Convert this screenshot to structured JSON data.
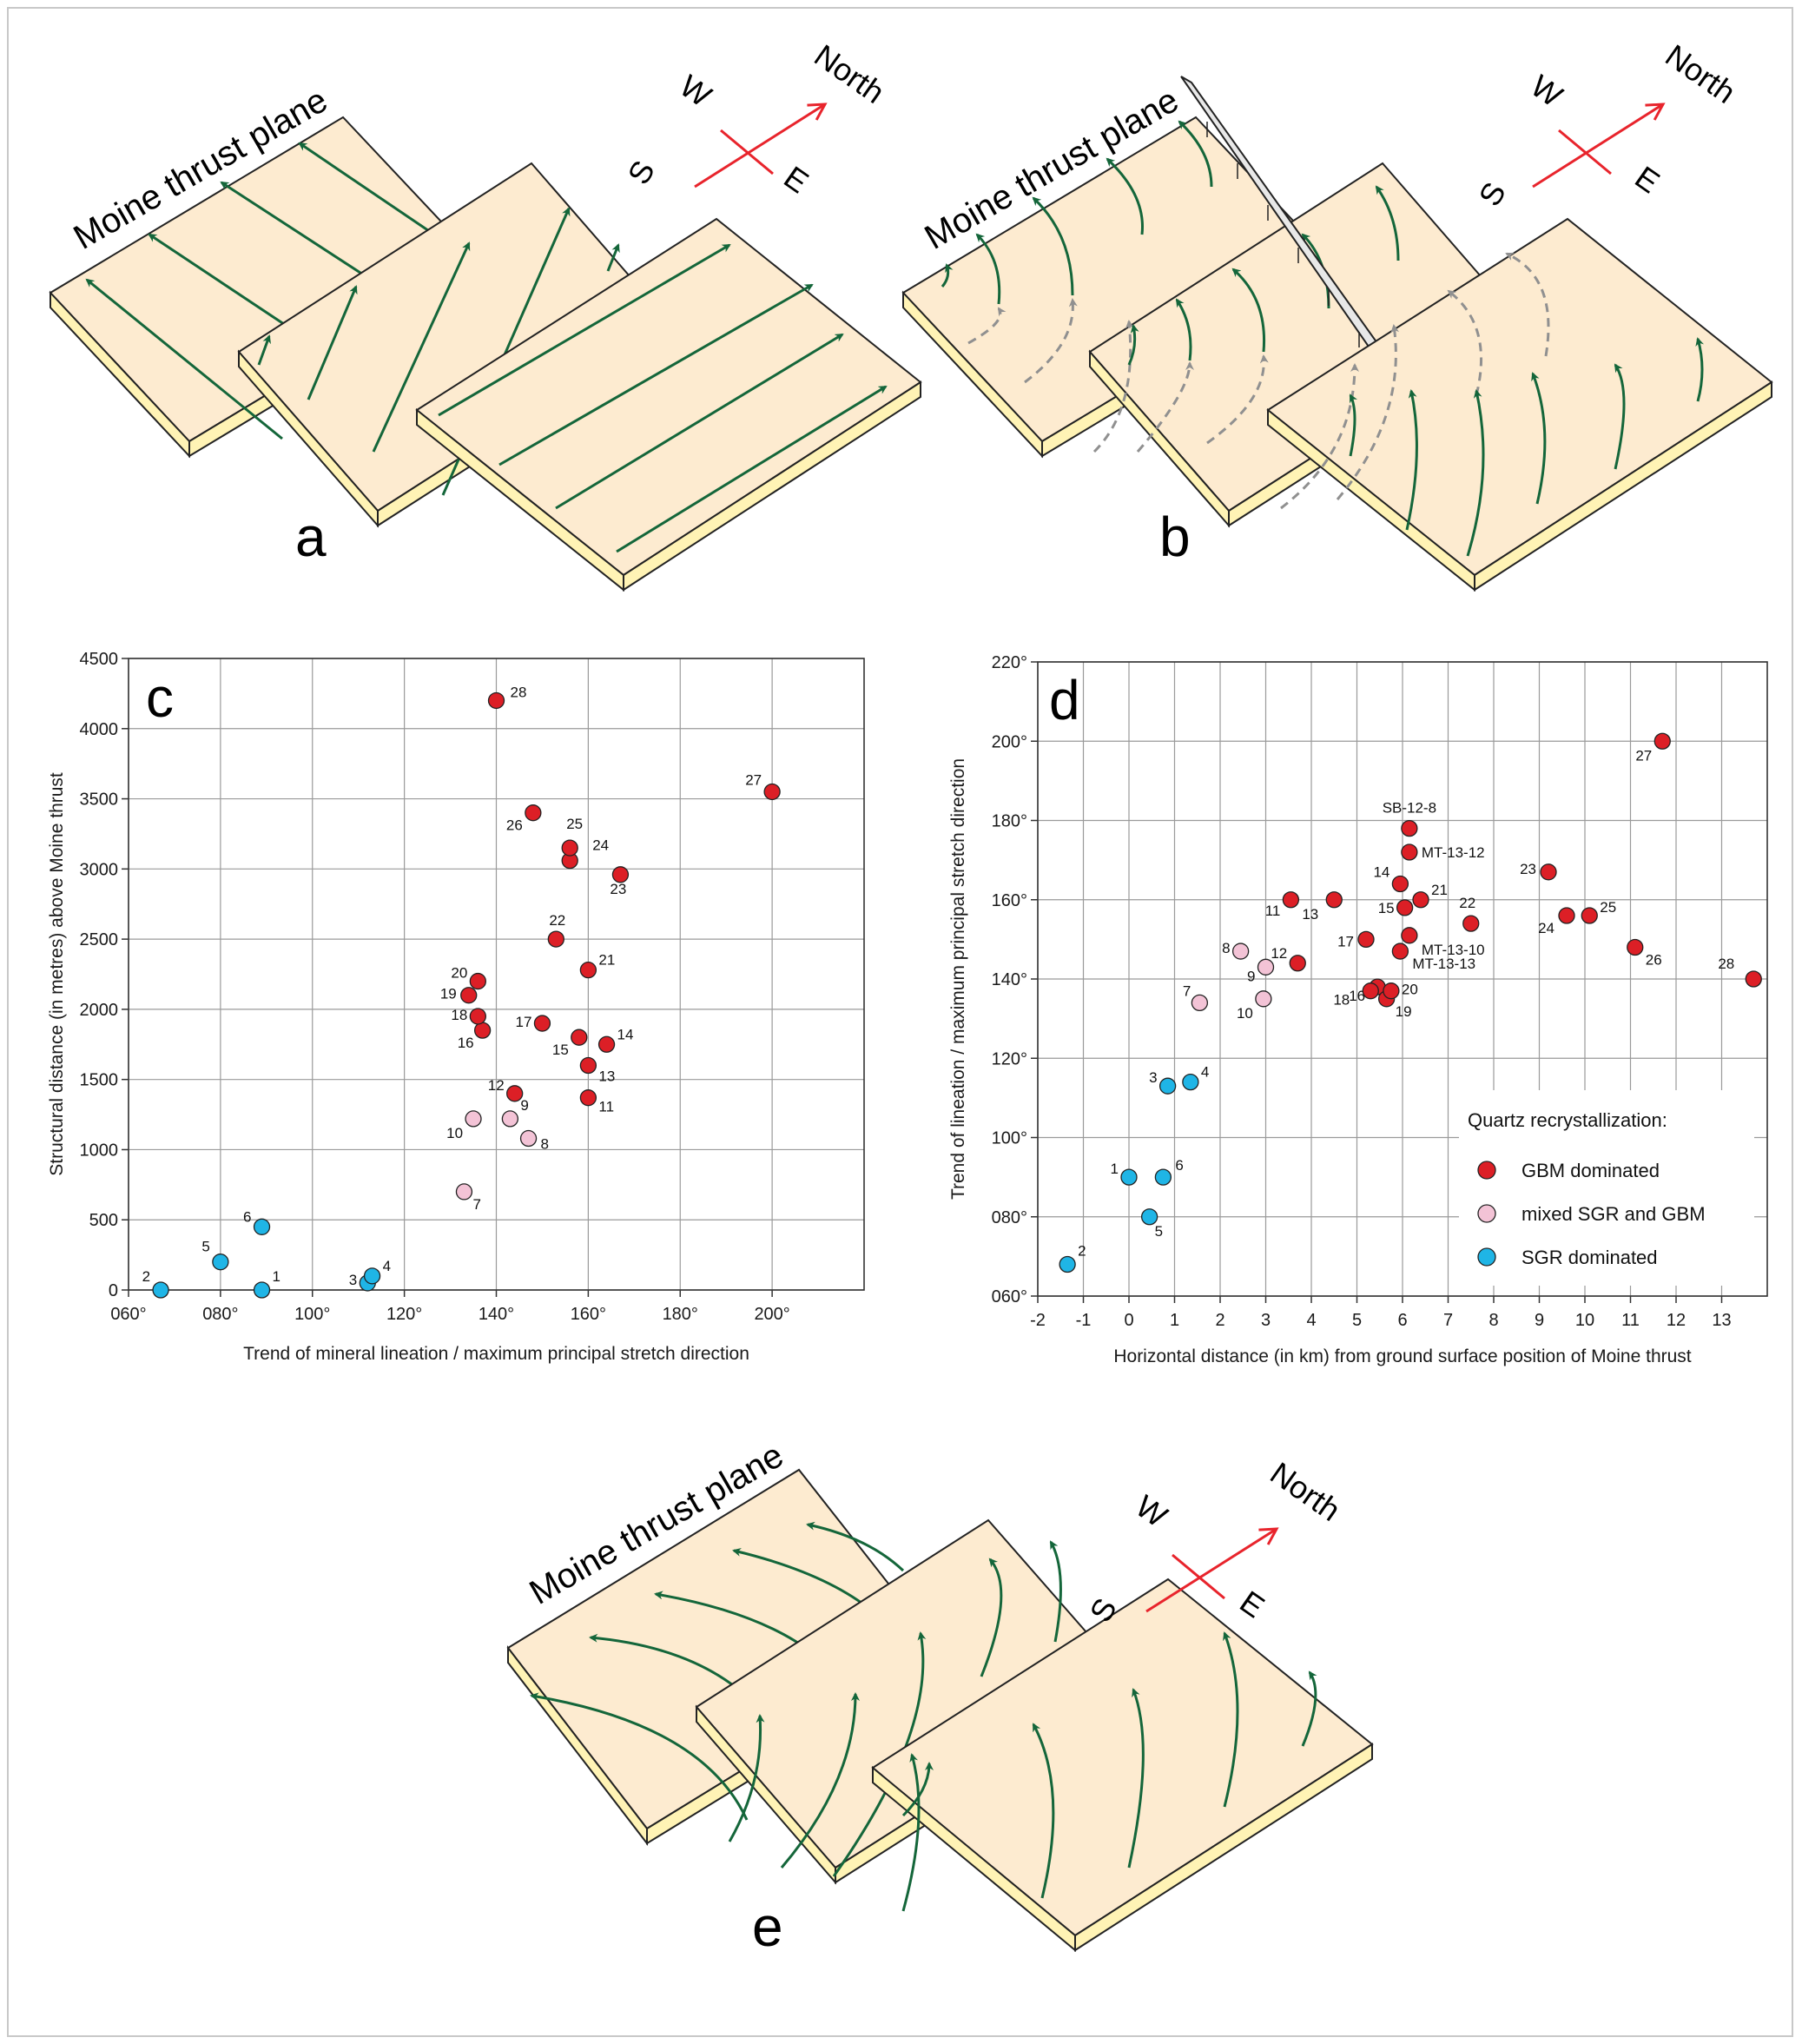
{
  "colors": {
    "plate_top": "#fdebd0",
    "plate_side": "#fff3b5",
    "arrow": "#14663a",
    "dashed_arrow": "#909090",
    "compass": "#e8242c",
    "gbm": "#dc1f26",
    "mixed": "#f3c3d6",
    "sgr": "#1fb5e6"
  },
  "diagrams": {
    "a": {
      "label": "a",
      "plane_label": "Moine thrust plane"
    },
    "b": {
      "label": "b",
      "plane_label": "Moine thrust plane"
    },
    "e": {
      "label": "e",
      "plane_label": "Moine thrust plane"
    }
  },
  "compass": {
    "north": "North",
    "south": "S",
    "east": "E",
    "west": "W"
  },
  "chart_data": [
    {
      "id": "c",
      "panel_label": "c",
      "type": "scatter",
      "xlabel": "Trend of mineral lineation / maximum principal stretch direction",
      "ylabel": "Structural distance (in metres) above Moine thrust",
      "xlim": [
        60,
        220
      ],
      "ylim": [
        0,
        4500
      ],
      "grid": true,
      "x_ticks": [
        60,
        80,
        100,
        120,
        140,
        160,
        180,
        200
      ],
      "x_tick_labels": [
        "060°",
        "080°",
        "100°",
        "120°",
        "140°",
        "160°",
        "180°",
        "200°"
      ],
      "y_ticks": [
        0,
        500,
        1000,
        1500,
        2000,
        2500,
        3000,
        3500,
        4000,
        4500
      ],
      "y_tick_labels": [
        "0",
        "500",
        "1000",
        "1500",
        "2000",
        "2500",
        "3000",
        "3500",
        "4000",
        "4500"
      ],
      "points": [
        {
          "label": "1",
          "x": 89,
          "y": 0,
          "cat": "sgr"
        },
        {
          "label": "2",
          "x": 67,
          "y": 0,
          "cat": "sgr"
        },
        {
          "label": "3",
          "x": 112,
          "y": 50,
          "cat": "sgr"
        },
        {
          "label": "4",
          "x": 113,
          "y": 100,
          "cat": "sgr"
        },
        {
          "label": "5",
          "x": 80,
          "y": 200,
          "cat": "sgr"
        },
        {
          "label": "6",
          "x": 89,
          "y": 450,
          "cat": "sgr"
        },
        {
          "label": "7",
          "x": 133,
          "y": 700,
          "cat": "mixed"
        },
        {
          "label": "8",
          "x": 147,
          "y": 1080,
          "cat": "mixed"
        },
        {
          "label": "9",
          "x": 143,
          "y": 1220,
          "cat": "mixed"
        },
        {
          "label": "10",
          "x": 135,
          "y": 1220,
          "cat": "mixed"
        },
        {
          "label": "11",
          "x": 160,
          "y": 1370,
          "cat": "gbm"
        },
        {
          "label": "12",
          "x": 144,
          "y": 1400,
          "cat": "gbm"
        },
        {
          "label": "13",
          "x": 160,
          "y": 1600,
          "cat": "gbm"
        },
        {
          "label": "14",
          "x": 164,
          "y": 1750,
          "cat": "gbm"
        },
        {
          "label": "15",
          "x": 158,
          "y": 1800,
          "cat": "gbm"
        },
        {
          "label": "16",
          "x": 137,
          "y": 1850,
          "cat": "gbm"
        },
        {
          "label": "17",
          "x": 150,
          "y": 1900,
          "cat": "gbm"
        },
        {
          "label": "18",
          "x": 136,
          "y": 1950,
          "cat": "gbm"
        },
        {
          "label": "19",
          "x": 134,
          "y": 2100,
          "cat": "gbm"
        },
        {
          "label": "20",
          "x": 136,
          "y": 2200,
          "cat": "gbm"
        },
        {
          "label": "21",
          "x": 160,
          "y": 2280,
          "cat": "gbm"
        },
        {
          "label": "22",
          "x": 153,
          "y": 2500,
          "cat": "gbm"
        },
        {
          "label": "23",
          "x": 167,
          "y": 2960,
          "cat": "gbm"
        },
        {
          "label": "24",
          "x": 156,
          "y": 3060,
          "cat": "gbm"
        },
        {
          "label": "25",
          "x": 156,
          "y": 3150,
          "cat": "gbm"
        },
        {
          "label": "26",
          "x": 148,
          "y": 3400,
          "cat": "gbm"
        },
        {
          "label": "27",
          "x": 200,
          "y": 3550,
          "cat": "gbm"
        },
        {
          "label": "28",
          "x": 140,
          "y": 4200,
          "cat": "gbm"
        }
      ]
    },
    {
      "id": "d",
      "panel_label": "d",
      "type": "scatter",
      "xlabel": "Horizontal distance (in km) from ground surface position of Moine thrust",
      "ylabel": "Trend of lineation / maximum principal stretch direction",
      "xlim": [
        -2,
        14
      ],
      "ylim": [
        60,
        220
      ],
      "grid": true,
      "x_ticks": [
        -2,
        -1,
        0,
        1,
        2,
        3,
        4,
        5,
        6,
        7,
        8,
        9,
        10,
        11,
        12,
        13
      ],
      "x_tick_labels": [
        "-2",
        "-1",
        "0",
        "1",
        "2",
        "3",
        "4",
        "5",
        "6",
        "7",
        "8",
        "9",
        "10",
        "11",
        "12",
        "13"
      ],
      "y_ticks": [
        60,
        80,
        100,
        120,
        140,
        160,
        180,
        200,
        220
      ],
      "y_tick_labels": [
        "060°",
        "080°",
        "100°",
        "120°",
        "140°",
        "160°",
        "180°",
        "200°",
        "220°"
      ],
      "legend": {
        "title": "Quartz recrystallization:",
        "entries": [
          {
            "cat": "gbm",
            "label": "GBM dominated"
          },
          {
            "cat": "mixed",
            "label": "mixed SGR and GBM"
          },
          {
            "cat": "sgr",
            "label": "SGR dominated"
          }
        ]
      },
      "points": [
        {
          "label": "1",
          "x": 0.0,
          "y": 90,
          "cat": "sgr"
        },
        {
          "label": "2",
          "x": -1.35,
          "y": 68,
          "cat": "sgr"
        },
        {
          "label": "3",
          "x": 0.85,
          "y": 113,
          "cat": "sgr"
        },
        {
          "label": "4",
          "x": 1.35,
          "y": 114,
          "cat": "sgr"
        },
        {
          "label": "5",
          "x": 0.45,
          "y": 80,
          "cat": "sgr"
        },
        {
          "label": "6",
          "x": 0.75,
          "y": 90,
          "cat": "sgr"
        },
        {
          "label": "7",
          "x": 1.55,
          "y": 134,
          "cat": "mixed"
        },
        {
          "label": "8",
          "x": 2.45,
          "y": 147,
          "cat": "mixed"
        },
        {
          "label": "9",
          "x": 3.0,
          "y": 143,
          "cat": "mixed"
        },
        {
          "label": "10",
          "x": 2.95,
          "y": 135,
          "cat": "mixed"
        },
        {
          "label": "11",
          "x": 3.55,
          "y": 160,
          "cat": "gbm"
        },
        {
          "label": "12",
          "x": 3.7,
          "y": 144,
          "cat": "gbm"
        },
        {
          "label": "13",
          "x": 4.5,
          "y": 160,
          "cat": "gbm"
        },
        {
          "label": "14",
          "x": 5.95,
          "y": 164,
          "cat": "gbm"
        },
        {
          "label": "15",
          "x": 6.05,
          "y": 158,
          "cat": "gbm"
        },
        {
          "label": "16",
          "x": 5.45,
          "y": 138,
          "cat": "gbm"
        },
        {
          "label": "17",
          "x": 5.2,
          "y": 150,
          "cat": "gbm"
        },
        {
          "label": "18",
          "x": 5.3,
          "y": 137,
          "cat": "gbm"
        },
        {
          "label": "19",
          "x": 5.65,
          "y": 135,
          "cat": "gbm"
        },
        {
          "label": "20",
          "x": 5.75,
          "y": 137,
          "cat": "gbm"
        },
        {
          "label": "21",
          "x": 6.4,
          "y": 160,
          "cat": "gbm"
        },
        {
          "label": "22",
          "x": 7.5,
          "y": 154,
          "cat": "gbm"
        },
        {
          "label": "23",
          "x": 9.2,
          "y": 167,
          "cat": "gbm"
        },
        {
          "label": "24",
          "x": 9.6,
          "y": 156,
          "cat": "gbm"
        },
        {
          "label": "25",
          "x": 10.1,
          "y": 156,
          "cat": "gbm"
        },
        {
          "label": "26",
          "x": 11.1,
          "y": 148,
          "cat": "gbm"
        },
        {
          "label": "27",
          "x": 11.7,
          "y": 200,
          "cat": "gbm"
        },
        {
          "label": "28",
          "x": 13.7,
          "y": 140,
          "cat": "gbm"
        },
        {
          "label": "SB-12-8",
          "x": 6.15,
          "y": 178,
          "cat": "gbm"
        },
        {
          "label": "MT-13-12",
          "x": 6.15,
          "y": 172,
          "cat": "gbm"
        },
        {
          "label": "MT-13-10",
          "x": 6.15,
          "y": 151,
          "cat": "gbm"
        },
        {
          "label": "MT-13-13",
          "x": 5.95,
          "y": 147,
          "cat": "gbm"
        }
      ]
    }
  ]
}
